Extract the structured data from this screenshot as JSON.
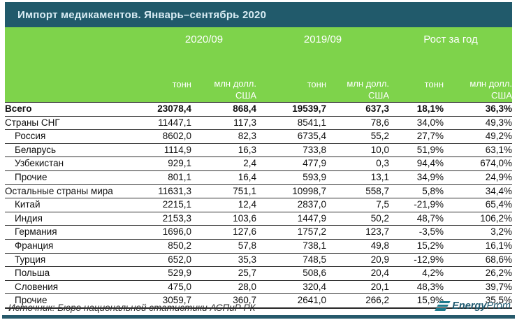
{
  "title": "Импорт медикаментов. Январь–сентябрь 2020",
  "colors": {
    "titlebar_bg": "#215a6b",
    "header_green": "#7ed34b",
    "accent_teal": "#26596b",
    "logo_teal": "#1e7a8c"
  },
  "table": {
    "groups": [
      {
        "label": "2020/09"
      },
      {
        "label": "2019/09"
      },
      {
        "label": "Рост за год"
      }
    ],
    "subheaders": {
      "tons": "тонн",
      "usd_line1": "млн долл.",
      "usd_line2": "США"
    },
    "rows": [
      {
        "label": "Всего",
        "indent": false,
        "bold": true,
        "values": [
          "23078,4",
          "868,4",
          "19539,7",
          "637,3",
          "18,1%",
          "36,3%"
        ]
      },
      {
        "label": "Страны СНГ",
        "indent": false,
        "bold": false,
        "values": [
          "11447,1",
          "117,3",
          "8541,1",
          "78,6",
          "34,0%",
          "49,3%"
        ]
      },
      {
        "label": "Россия",
        "indent": true,
        "bold": false,
        "values": [
          "8602,0",
          "82,3",
          "6735,4",
          "55,2",
          "27,7%",
          "49,2%"
        ]
      },
      {
        "label": "Беларусь",
        "indent": true,
        "bold": false,
        "values": [
          "1114,9",
          "16,3",
          "733,8",
          "10,0",
          "51,9%",
          "63,1%"
        ]
      },
      {
        "label": "Узбекистан",
        "indent": true,
        "bold": false,
        "values": [
          "929,1",
          "2,4",
          "477,9",
          "0,3",
          "94,4%",
          "674,0%"
        ]
      },
      {
        "label": "Прочие",
        "indent": true,
        "bold": false,
        "values": [
          "801,1",
          "16,4",
          "593,9",
          "13,1",
          "34,9%",
          "24,9%"
        ]
      },
      {
        "label": "Остальные страны мира",
        "indent": false,
        "bold": false,
        "values": [
          "11631,3",
          "751,1",
          "10998,7",
          "558,7",
          "5,8%",
          "34,4%"
        ]
      },
      {
        "label": "Китай",
        "indent": true,
        "bold": false,
        "values": [
          "2215,1",
          "12,4",
          "2837,0",
          "7,5",
          "-21,9%",
          "65,4%"
        ]
      },
      {
        "label": "Индия",
        "indent": true,
        "bold": false,
        "values": [
          "2153,3",
          "103,6",
          "1447,9",
          "50,2",
          "48,7%",
          "106,2%"
        ]
      },
      {
        "label": "Германия",
        "indent": true,
        "bold": false,
        "values": [
          "1696,0",
          "127,6",
          "1757,2",
          "123,7",
          "-3,5%",
          "3,2%"
        ]
      },
      {
        "label": "Франция",
        "indent": true,
        "bold": false,
        "values": [
          "850,2",
          "57,8",
          "738,1",
          "49,8",
          "15,2%",
          "16,1%"
        ]
      },
      {
        "label": "Турция",
        "indent": true,
        "bold": false,
        "values": [
          "652,0",
          "35,3",
          "748,5",
          "20,9",
          "-12,9%",
          "68,6%"
        ]
      },
      {
        "label": "Польша",
        "indent": true,
        "bold": false,
        "values": [
          "529,9",
          "25,7",
          "508,6",
          "20,4",
          "4,2%",
          "26,2%"
        ]
      },
      {
        "label": "Словения",
        "indent": true,
        "bold": false,
        "values": [
          "475,0",
          "28,0",
          "320,4",
          "20,1",
          "48,3%",
          "39,7%"
        ]
      },
      {
        "label": "Прочие",
        "indent": true,
        "bold": false,
        "values": [
          "3059,7",
          "360,7",
          "2641,0",
          "266,2",
          "15,9%",
          "35,5%"
        ]
      }
    ]
  },
  "footer": {
    "source": "Источник: Бюро национальной статистики АСПиР РК",
    "logo_bold": "Energy",
    "logo_light": "Prom"
  },
  "chart_data": {
    "type": "table",
    "title": "Импорт медикаментов. Январь–сентябрь 2020",
    "column_groups": [
      "2020/09",
      "2019/09",
      "Рост за год"
    ],
    "columns": [
      "2020/09 тонн",
      "2020/09 млн долл. США",
      "2019/09 тонн",
      "2019/09 млн долл. США",
      "Рост за год тонн %",
      "Рост за год млн долл. США %"
    ],
    "rows": [
      {
        "name": "Всего",
        "tons_2020": 23078.4,
        "usd_2020": 868.4,
        "tons_2019": 19539.7,
        "usd_2019": 637.3,
        "growth_tons_pct": 18.1,
        "growth_usd_pct": 36.3
      },
      {
        "name": "Страны СНГ",
        "tons_2020": 11447.1,
        "usd_2020": 117.3,
        "tons_2019": 8541.1,
        "usd_2019": 78.6,
        "growth_tons_pct": 34.0,
        "growth_usd_pct": 49.3
      },
      {
        "name": "Россия",
        "tons_2020": 8602.0,
        "usd_2020": 82.3,
        "tons_2019": 6735.4,
        "usd_2019": 55.2,
        "growth_tons_pct": 27.7,
        "growth_usd_pct": 49.2
      },
      {
        "name": "Беларусь",
        "tons_2020": 1114.9,
        "usd_2020": 16.3,
        "tons_2019": 733.8,
        "usd_2019": 10.0,
        "growth_tons_pct": 51.9,
        "growth_usd_pct": 63.1
      },
      {
        "name": "Узбекистан",
        "tons_2020": 929.1,
        "usd_2020": 2.4,
        "tons_2019": 477.9,
        "usd_2019": 0.3,
        "growth_tons_pct": 94.4,
        "growth_usd_pct": 674.0
      },
      {
        "name": "Прочие (СНГ)",
        "tons_2020": 801.1,
        "usd_2020": 16.4,
        "tons_2019": 593.9,
        "usd_2019": 13.1,
        "growth_tons_pct": 34.9,
        "growth_usd_pct": 24.9
      },
      {
        "name": "Остальные страны мира",
        "tons_2020": 11631.3,
        "usd_2020": 751.1,
        "tons_2019": 10998.7,
        "usd_2019": 558.7,
        "growth_tons_pct": 5.8,
        "growth_usd_pct": 34.4
      },
      {
        "name": "Китай",
        "tons_2020": 2215.1,
        "usd_2020": 12.4,
        "tons_2019": 2837.0,
        "usd_2019": 7.5,
        "growth_tons_pct": -21.9,
        "growth_usd_pct": 65.4
      },
      {
        "name": "Индия",
        "tons_2020": 2153.3,
        "usd_2020": 103.6,
        "tons_2019": 1447.9,
        "usd_2019": 50.2,
        "growth_tons_pct": 48.7,
        "growth_usd_pct": 106.2
      },
      {
        "name": "Германия",
        "tons_2020": 1696.0,
        "usd_2020": 127.6,
        "tons_2019": 1757.2,
        "usd_2019": 123.7,
        "growth_tons_pct": -3.5,
        "growth_usd_pct": 3.2
      },
      {
        "name": "Франция",
        "tons_2020": 850.2,
        "usd_2020": 57.8,
        "tons_2019": 738.1,
        "usd_2019": 49.8,
        "growth_tons_pct": 15.2,
        "growth_usd_pct": 16.1
      },
      {
        "name": "Турция",
        "tons_2020": 652.0,
        "usd_2020": 35.3,
        "tons_2019": 748.5,
        "usd_2019": 20.9,
        "growth_tons_pct": -12.9,
        "growth_usd_pct": 68.6
      },
      {
        "name": "Польша",
        "tons_2020": 529.9,
        "usd_2020": 25.7,
        "tons_2019": 508.6,
        "usd_2019": 20.4,
        "growth_tons_pct": 4.2,
        "growth_usd_pct": 26.2
      },
      {
        "name": "Словения",
        "tons_2020": 475.0,
        "usd_2020": 28.0,
        "tons_2019": 320.4,
        "usd_2019": 20.1,
        "growth_tons_pct": 48.3,
        "growth_usd_pct": 39.7
      },
      {
        "name": "Прочие (мир)",
        "tons_2020": 3059.7,
        "usd_2020": 360.7,
        "tons_2019": 2641.0,
        "usd_2019": 266.2,
        "growth_tons_pct": 15.9,
        "growth_usd_pct": 35.5
      }
    ],
    "source": "Источник: Бюро национальной статистики АСПиР РК"
  }
}
